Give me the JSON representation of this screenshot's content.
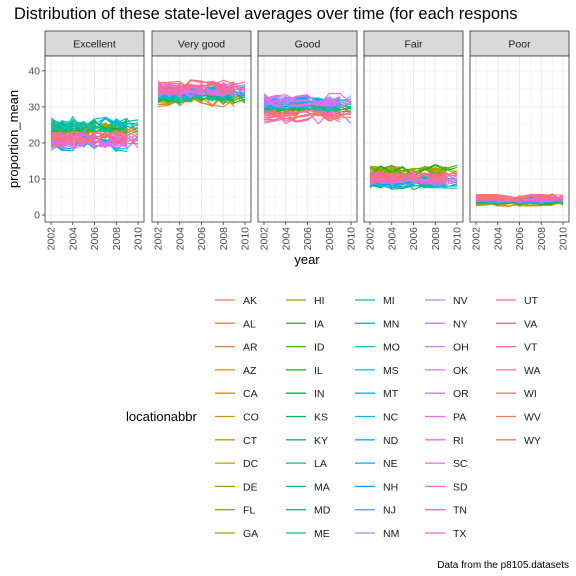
{
  "chart_data": {
    "type": "line",
    "title": "Distribution of these state-level averages over time (for each respons",
    "xlabel": "year",
    "ylabel": "proportion_mean",
    "caption": "Data from the p8105.datasets",
    "legend_title": "locationabbr",
    "legend_position": "bottom",
    "grid": true,
    "xlim": [
      2002,
      2010
    ],
    "ylim": [
      0,
      43
    ],
    "x_ticks": [
      "2002",
      "2004",
      "2006",
      "2008",
      "2010"
    ],
    "y_ticks": [
      "0",
      "10",
      "20",
      "30",
      "40"
    ],
    "years": [
      2002,
      2003,
      2004,
      2005,
      2006,
      2007,
      2008,
      2009,
      2010
    ],
    "panels": [
      {
        "label": "Excellent",
        "center": 22.5,
        "spread": 2.8
      },
      {
        "label": "Very good",
        "center": 34.5,
        "spread": 2.6
      },
      {
        "label": "Good",
        "center": 29.5,
        "spread": 2.4
      },
      {
        "label": "Fair",
        "center": 10.5,
        "spread": 2.0
      },
      {
        "label": "Poor",
        "center": 4.0,
        "spread": 1.2
      }
    ],
    "series": [
      "AK",
      "AL",
      "AR",
      "AZ",
      "CA",
      "CO",
      "CT",
      "DC",
      "DE",
      "FL",
      "GA",
      "HI",
      "IA",
      "ID",
      "IL",
      "IN",
      "KS",
      "KY",
      "LA",
      "MA",
      "MD",
      "ME",
      "MI",
      "MN",
      "MO",
      "MS",
      "MT",
      "NC",
      "ND",
      "NE",
      "NH",
      "NJ",
      "NM",
      "NV",
      "NY",
      "OH",
      "OK",
      "OR",
      "PA",
      "RI",
      "SC",
      "SD",
      "TN",
      "TX",
      "UT",
      "VA",
      "VT",
      "WA",
      "WI",
      "WV",
      "WY"
    ],
    "colors": [
      "#F8766D",
      "#F27D52",
      "#EA8331",
      "#E38900",
      "#D98F00",
      "#CF9400",
      "#C49A00",
      "#B79F00",
      "#AAA300",
      "#9BA800",
      "#8AAB00",
      "#77AF00",
      "#60B200",
      "#3FB500",
      "#00B81F",
      "#00BA42",
      "#00BC59",
      "#00BE6C",
      "#00BF7D",
      "#00C08D",
      "#00C19C",
      "#00C1AA",
      "#00C0B8",
      "#00BFC4",
      "#00BDD0",
      "#00BBDB",
      "#00B8E5",
      "#00B4EF",
      "#00AFF8",
      "#00A9FF",
      "#00A2FF",
      "#619CFF",
      "#8B93FF",
      "#A58AFF",
      "#B983FF",
      "#C77CFF",
      "#D376FF",
      "#DE70F9",
      "#E76BF3",
      "#EE67EB",
      "#F564E3",
      "#F962D9",
      "#FC61CF",
      "#FF61C3",
      "#FF62B6",
      "#FF64A9",
      "#FF679A",
      "#FE6A8B",
      "#F8766D",
      "#F27D52",
      "#F8766D"
    ]
  }
}
